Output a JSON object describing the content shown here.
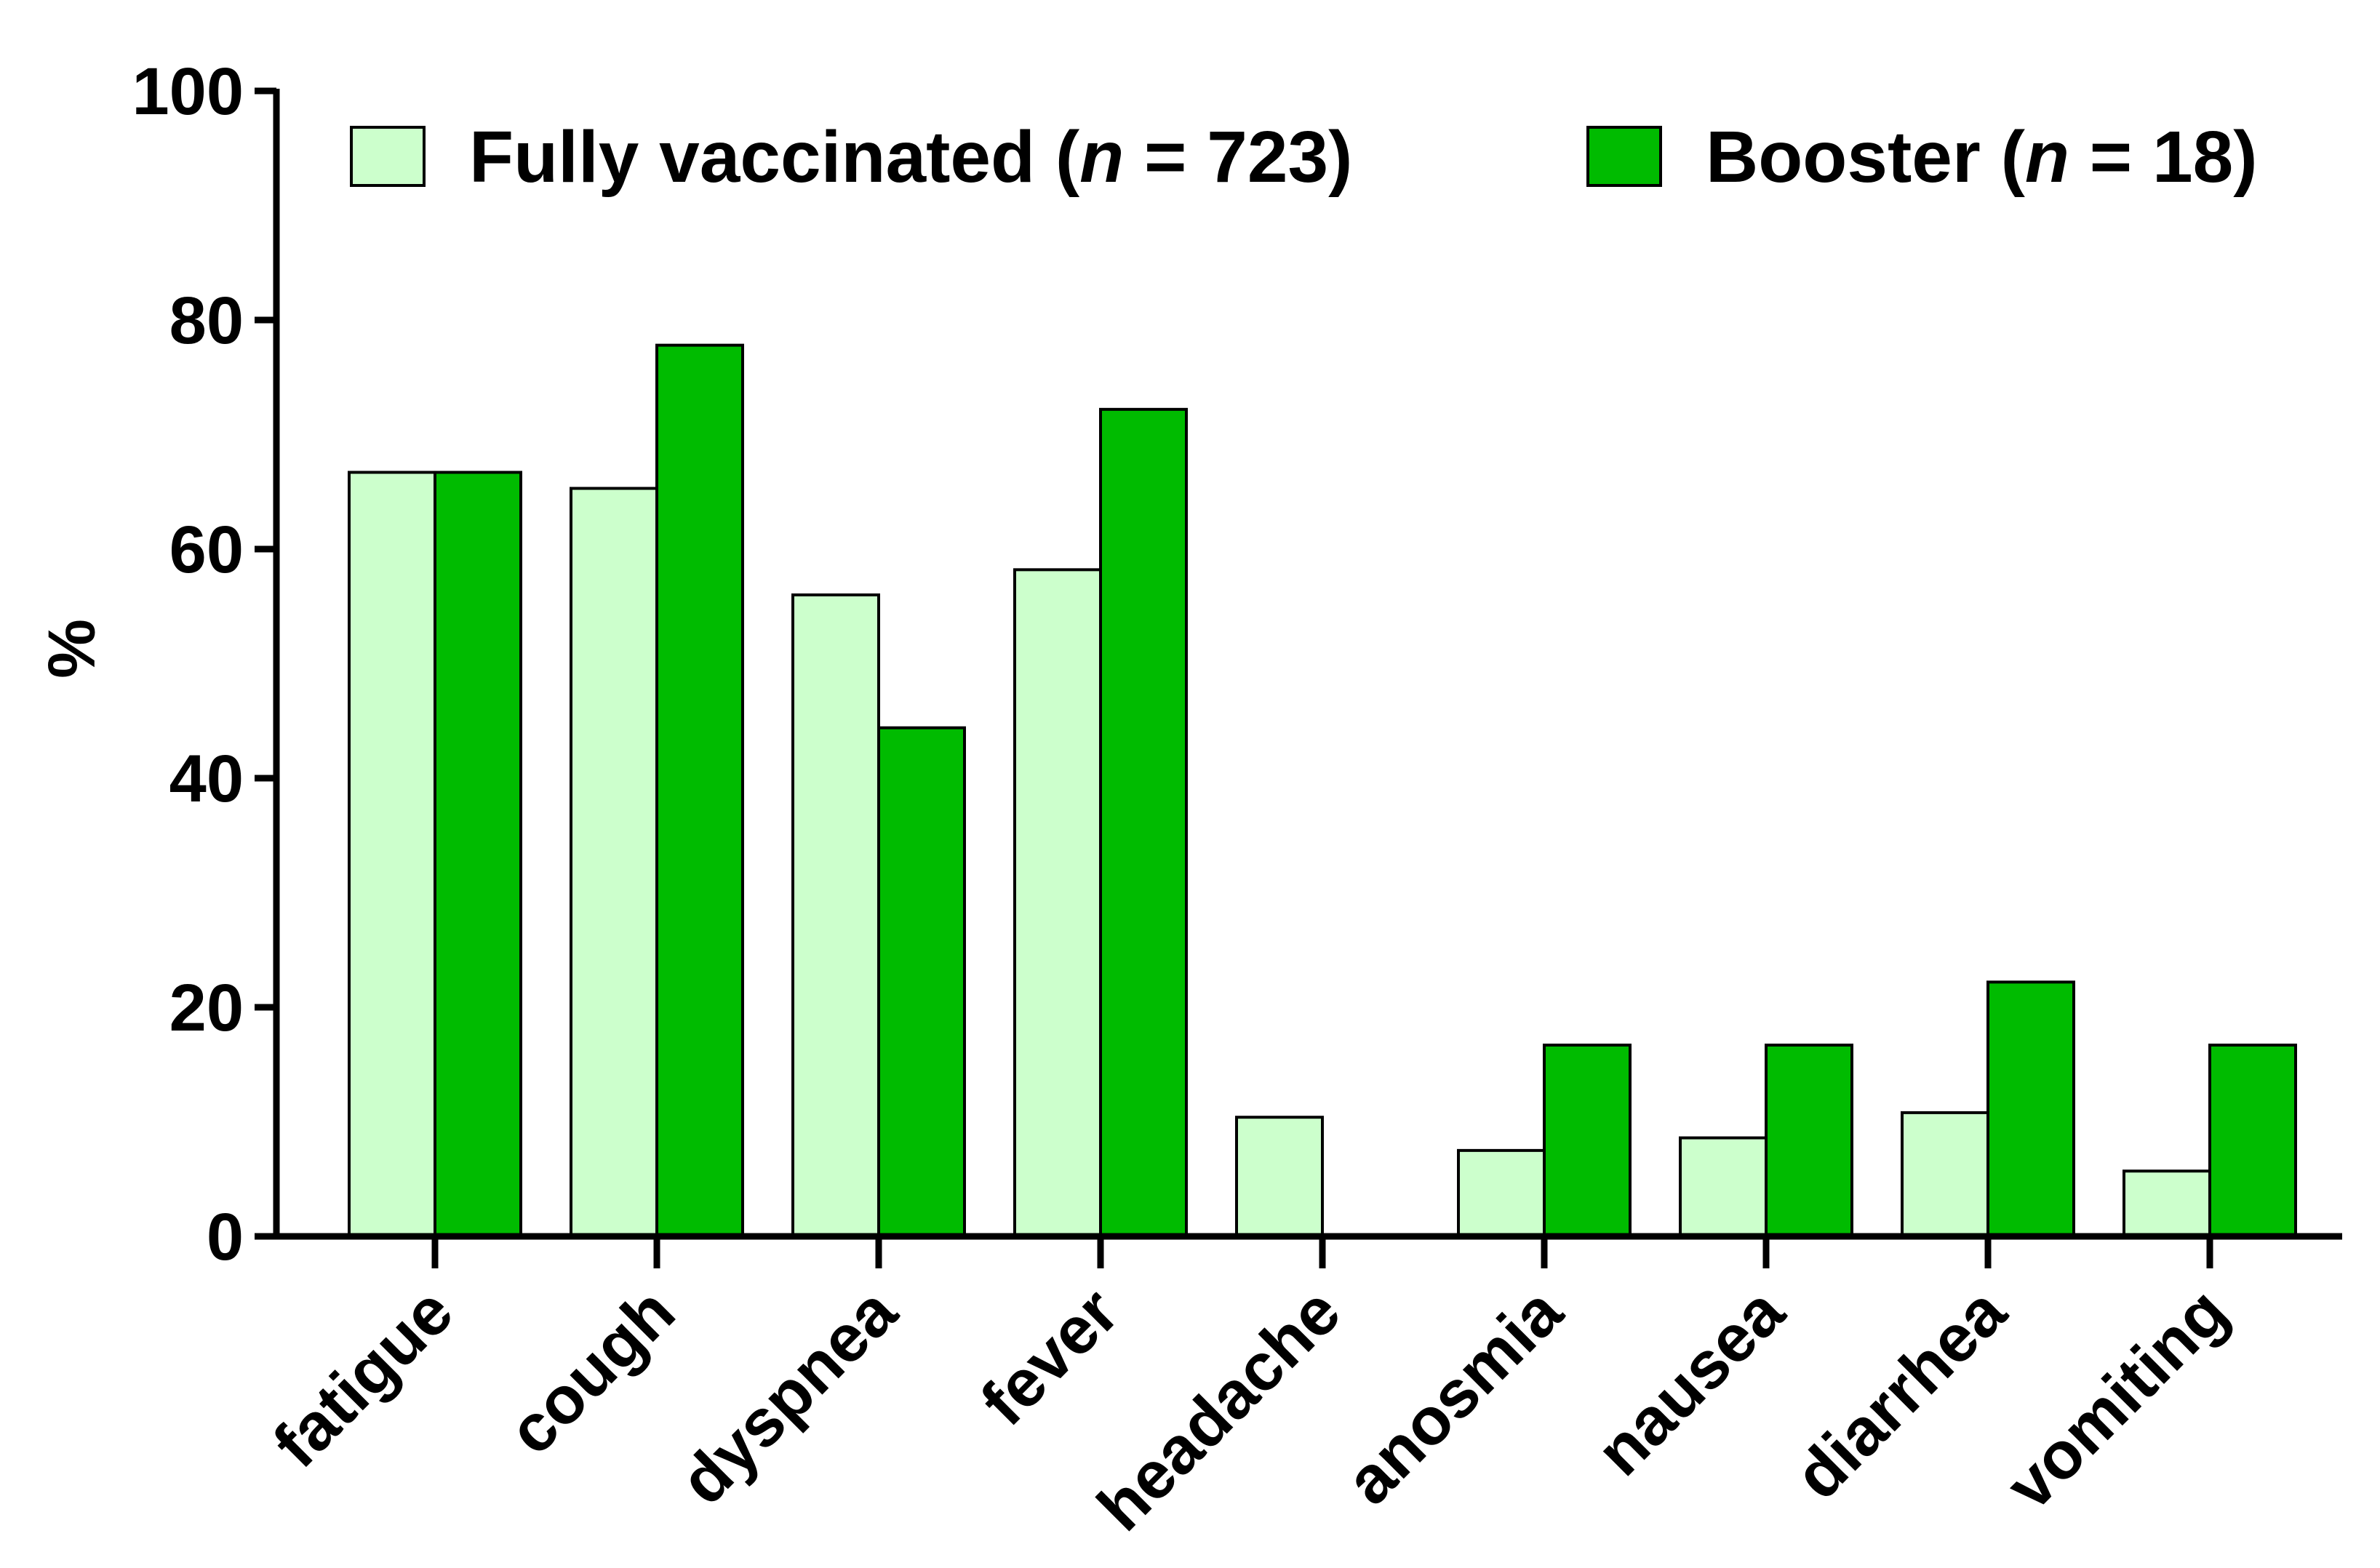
{
  "chart_data": {
    "type": "bar",
    "title": "",
    "xlabel": "",
    "ylabel": "%",
    "ylim": [
      0,
      100
    ],
    "yticks": [
      0,
      20,
      40,
      60,
      80,
      100
    ],
    "grid": false,
    "legend_position": "top",
    "categories": [
      "fatigue",
      "cough",
      "dyspnea",
      "fever",
      "headache",
      "anosmia",
      "nausea",
      "diarrhea",
      "vomiting"
    ],
    "series": [
      {
        "name": "Fully vaccinated (n = 723)",
        "name_parts": {
          "prefix": "Fully vaccinated (",
          "italic": "n",
          "suffix": " = 723)"
        },
        "color": "#ccffcc",
        "values": [
          66.7,
          65.3,
          56.0,
          58.2,
          10.4,
          7.5,
          8.6,
          10.8,
          5.7
        ]
      },
      {
        "name": "Booster (n = 18)",
        "name_parts": {
          "prefix": "Booster (",
          "italic": "n",
          "suffix": " = 18)"
        },
        "color": "#00bb00",
        "values": [
          66.7,
          77.8,
          44.4,
          72.2,
          0,
          16.7,
          16.7,
          22.2,
          16.7
        ]
      }
    ]
  }
}
